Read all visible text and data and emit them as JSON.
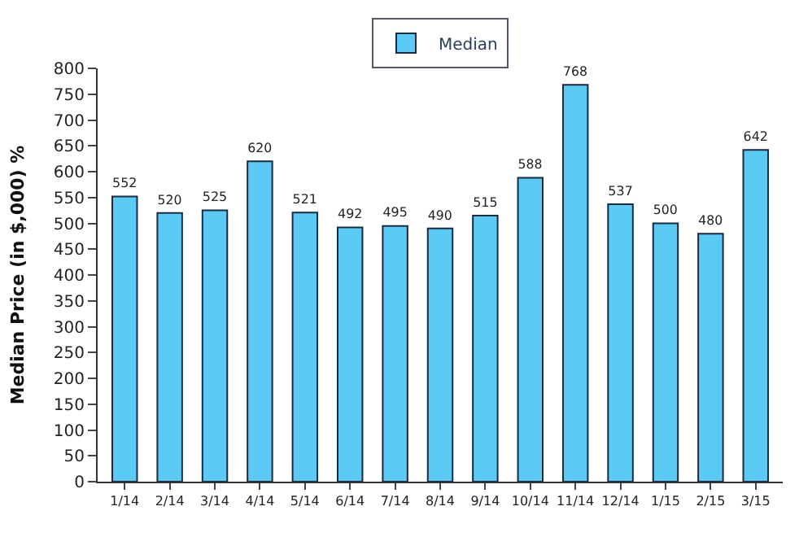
{
  "chart_data": {
    "type": "bar",
    "ylabel": "Median Price (in $,000) %",
    "categories": [
      "1/14",
      "2/14",
      "3/14",
      "4/14",
      "5/14",
      "6/14",
      "7/14",
      "8/14",
      "9/14",
      "10/14",
      "11/14",
      "12/14",
      "1/15",
      "2/15",
      "3/15"
    ],
    "series": [
      {
        "name": "Median",
        "color": "#5bcbf5",
        "values": [
          552,
          520,
          525,
          620,
          521,
          492,
          495,
          490,
          515,
          588,
          768,
          537,
          500,
          480,
          642
        ]
      }
    ],
    "ylim": [
      0,
      800
    ],
    "yticks": [
      0,
      50,
      100,
      150,
      200,
      250,
      300,
      350,
      400,
      450,
      500,
      550,
      600,
      650,
      700,
      750,
      800
    ],
    "data_labels": true,
    "legend": "top"
  }
}
